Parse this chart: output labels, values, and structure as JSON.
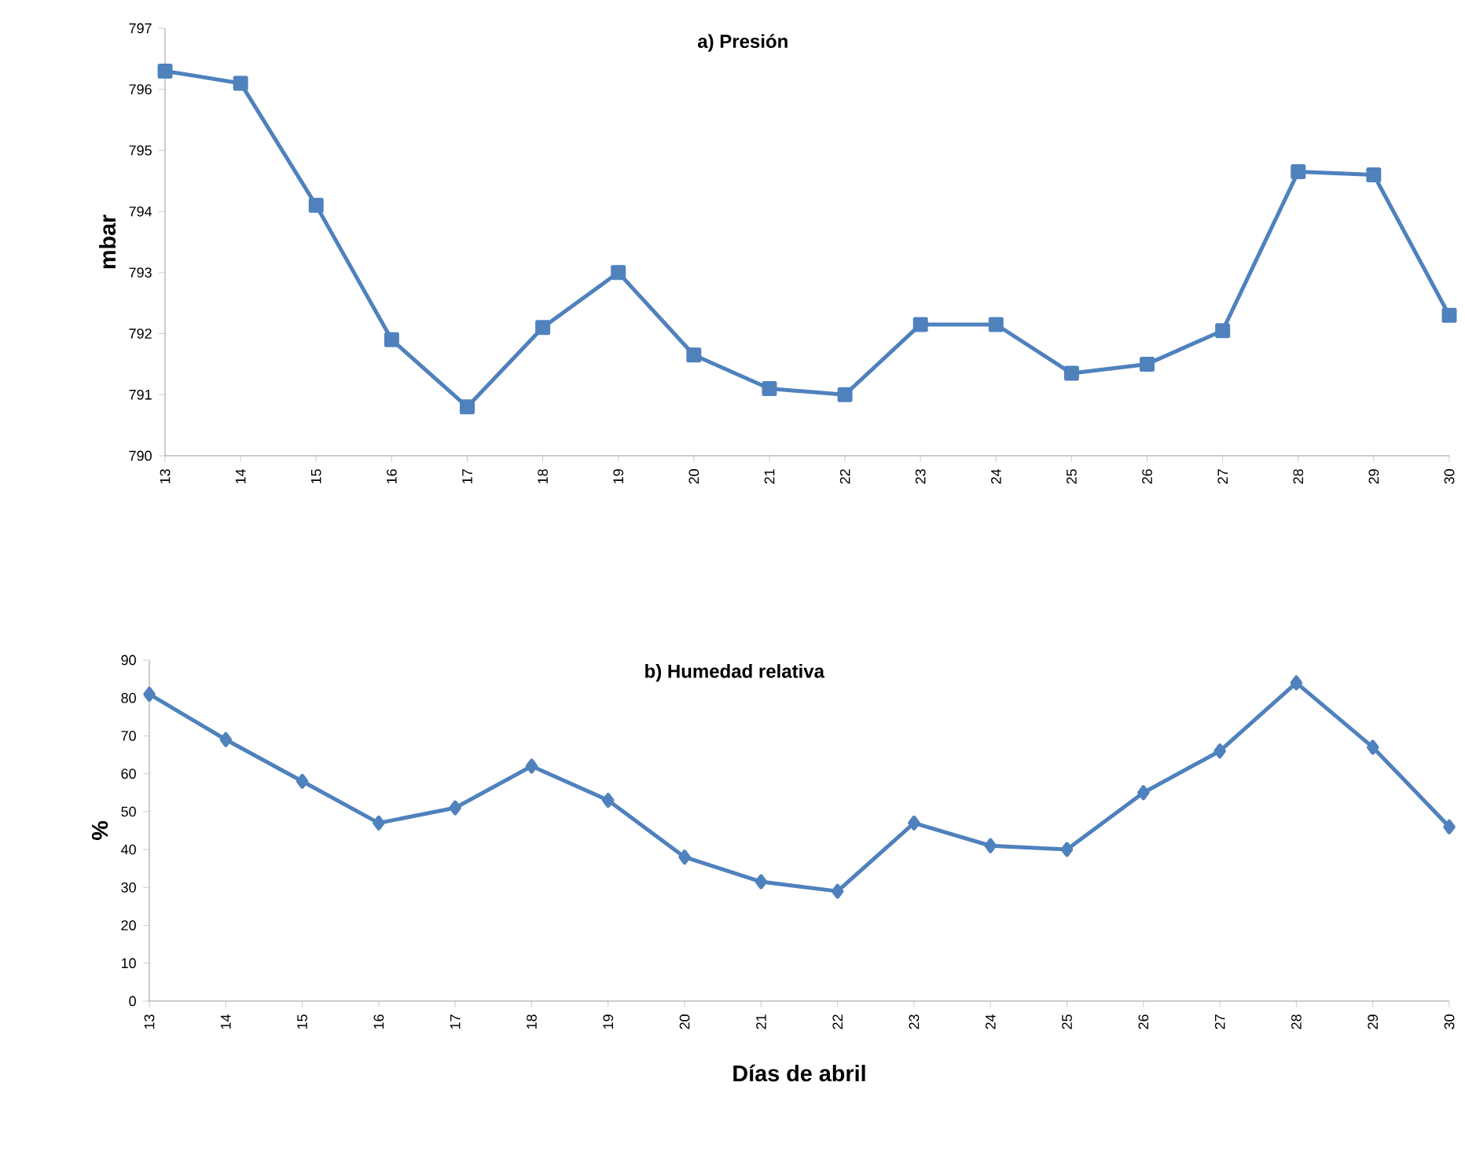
{
  "chart_data": [
    {
      "type": "line",
      "title": "a) Presión",
      "ylabel": "mbar",
      "categories": [
        "13",
        "14",
        "15",
        "16",
        "17",
        "18",
        "19",
        "20",
        "21",
        "22",
        "23",
        "24",
        "25",
        "26",
        "27",
        "28",
        "29",
        "30"
      ],
      "values": [
        796.3,
        796.1,
        794.1,
        791.9,
        790.8,
        792.1,
        793.0,
        791.65,
        791.1,
        791.0,
        792.15,
        792.15,
        791.35,
        791.5,
        792.05,
        794.65,
        794.6,
        792.3
      ],
      "color": "#4f81bd",
      "marker": "square",
      "ylim": [
        790,
        797
      ],
      "yticks": [
        790,
        791,
        792,
        793,
        794,
        795,
        796,
        797
      ]
    },
    {
      "type": "line",
      "title": "b) Humedad relativa",
      "ylabel": "%",
      "xlabel": "Días de abril",
      "categories": [
        "13",
        "14",
        "15",
        "16",
        "17",
        "18",
        "19",
        "20",
        "21",
        "22",
        "23",
        "24",
        "25",
        "26",
        "27",
        "28",
        "29",
        "30"
      ],
      "values": [
        81,
        69,
        58,
        47,
        51,
        62,
        53,
        38,
        31.5,
        29,
        47,
        41,
        40,
        55,
        66,
        84,
        67,
        46
      ],
      "color": "#4f81bd",
      "marker": "diamond",
      "ylim": [
        0,
        90
      ],
      "yticks": [
        0,
        10,
        20,
        30,
        40,
        50,
        60,
        70,
        80,
        90
      ]
    }
  ]
}
